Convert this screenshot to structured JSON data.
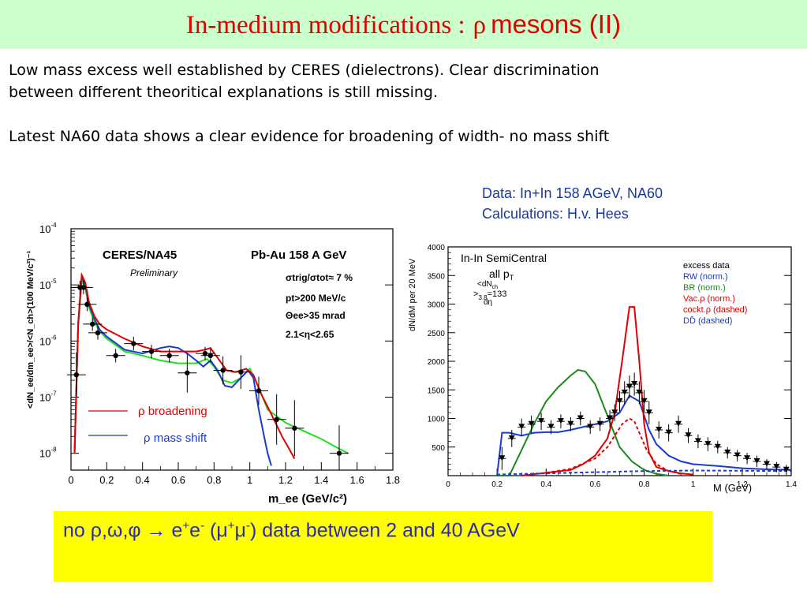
{
  "slide": {
    "title_prefix": "In-medium modifications :",
    "title_rho": "ρ",
    "title_suffix": "mesons (II)",
    "para1_line1": "Low mass excess well established by CERES (dielectrons). Clear discrimination",
    "para1_line2": "between different theoritical explanations is still missing.",
    "para2": "Latest NA60 data shows a clear evidence for broadening of width- no mass shift",
    "caption_line1": "Data:  In+In 158 AGeV, NA60",
    "caption_line2": "Calculations: H.v. Hees",
    "notice_main": "no ρ,ω,φ → e",
    "notice_sup1": "+",
    "notice_mid1": "e",
    "notice_sup2": "-",
    "notice_mid2": " (μ",
    "notice_sup3": "+",
    "notice_mid3": "μ",
    "notice_sup4": "-",
    "notice_end": ") data  between 2 and 40 AGeV"
  },
  "colors": {
    "title": "#e00000",
    "title_bg": "#ccffcc",
    "notice_bg": "#ffff00",
    "notice_text": "#2a2ab0",
    "caption_text": "#1a3a9a"
  },
  "chart_data": [
    {
      "type": "line",
      "title": "CERES/NA45",
      "subtitle": "Pb-Au 158 A GeV",
      "note": "Preliminary",
      "xlabel": "m_ee (GeV/c²)",
      "ylabel": "<dN_ee/dm_ee>/<N_ch>(100 MeV/c²)⁻¹",
      "xlim": [
        0,
        1.8
      ],
      "ylim_log10": [
        -8.3,
        -4
      ],
      "yscale": "log",
      "x_ticks": [
        "0",
        "0.2",
        "0.4",
        "0.6",
        "0.8",
        "1",
        "1.2",
        "1.4",
        "1.6",
        "1.8"
      ],
      "y_ticks": [
        {
          "exp": -8,
          "label": "10",
          "sup": "-8"
        },
        {
          "exp": -7,
          "label": "10",
          "sup": "-7"
        },
        {
          "exp": -6,
          "label": "10",
          "sup": "-6"
        },
        {
          "exp": -5,
          "label": "10",
          "sup": "-5"
        },
        {
          "exp": -4,
          "label": "10",
          "sup": "-4"
        }
      ],
      "annotations": [
        "σtrig/σtot≈ 7 %",
        "pt>200 MeV/c",
        "Θee>35 mrad",
        "2.1<η<2.65"
      ],
      "legend": [
        {
          "label": "ρ broadening",
          "color": "#e00000"
        },
        {
          "label": "ρ mass shift",
          "color": "#1a3ad0"
        }
      ],
      "points": [
        {
          "x": 0.03,
          "y": 2.5e-07,
          "err": 0.4
        },
        {
          "x": 0.05,
          "y": 9e-06,
          "err": 0.12
        },
        {
          "x": 0.07,
          "y": 9e-06,
          "err": 0.12
        },
        {
          "x": 0.09,
          "y": 4.5e-06,
          "err": 0.12
        },
        {
          "x": 0.12,
          "y": 2e-06,
          "err": 0.12
        },
        {
          "x": 0.15,
          "y": 1.4e-06,
          "err": 0.12
        },
        {
          "x": 0.25,
          "y": 5.5e-07,
          "err": 0.12
        },
        {
          "x": 0.35,
          "y": 9e-07,
          "err": 0.12
        },
        {
          "x": 0.45,
          "y": 6.5e-07,
          "err": 0.12
        },
        {
          "x": 0.55,
          "y": 5.5e-07,
          "err": 0.12
        },
        {
          "x": 0.65,
          "y": 2.7e-07,
          "err": 0.35
        },
        {
          "x": 0.75,
          "y": 6e-07,
          "err": 0.12
        },
        {
          "x": 0.78,
          "y": 5.5e-07,
          "err": 0.12
        },
        {
          "x": 0.85,
          "y": 3e-07,
          "err": 0.25
        },
        {
          "x": 0.95,
          "y": 2.8e-07,
          "err": 0.3
        },
        {
          "x": 1.05,
          "y": 1.3e-07,
          "err": 0.25
        },
        {
          "x": 1.15,
          "y": 4e-08,
          "err": 0.45
        },
        {
          "x": 1.25,
          "y": 2.8e-08,
          "err": 0.5
        },
        {
          "x": 1.5,
          "y": 1e-08,
          "err": 0.5
        }
      ],
      "series": [
        {
          "name": "ρ broadening",
          "color": "#e00000",
          "x": [
            0.02,
            0.04,
            0.06,
            0.08,
            0.1,
            0.13,
            0.16,
            0.2,
            0.3,
            0.4,
            0.5,
            0.6,
            0.7,
            0.75,
            0.78,
            0.82,
            0.87,
            0.92,
            0.98,
            1.02,
            1.06,
            1.12,
            1.18,
            1.22,
            1.25
          ],
          "y": [
            1e-08,
            2e-06,
            1.5e-05,
            1.1e-05,
            5e-06,
            2.8e-06,
            2e-06,
            1.6e-06,
            1.1e-06,
            8e-07,
            6.5e-07,
            6.5e-07,
            6.5e-07,
            7e-07,
            7.5e-07,
            5e-07,
            3e-07,
            2.8e-07,
            3.2e-07,
            2.5e-07,
            1.2e-07,
            5e-08,
            2e-08,
            1.2e-08,
            8e-09
          ]
        },
        {
          "name": "ρ mass shift",
          "color": "#1a3ad0",
          "x": [
            0.02,
            0.04,
            0.06,
            0.08,
            0.1,
            0.13,
            0.16,
            0.2,
            0.3,
            0.4,
            0.5,
            0.55,
            0.6,
            0.65,
            0.7,
            0.74,
            0.78,
            0.82,
            0.86,
            0.9,
            0.95,
            0.99,
            1.02,
            1.05,
            1.08,
            1.1,
            1.12
          ],
          "y": [
            1e-08,
            2e-06,
            1.4e-05,
            1e-05,
            4.5e-06,
            2.5e-06,
            1.6e-06,
            1.2e-06,
            7e-07,
            6e-07,
            7.5e-07,
            8e-07,
            7.5e-07,
            6e-07,
            4.5e-07,
            3.5e-07,
            4.5e-07,
            3e-07,
            1.6e-07,
            1.5e-07,
            2.2e-07,
            3e-07,
            2.2e-07,
            6e-08,
            2e-08,
            1e-08,
            6e-09
          ]
        },
        {
          "name": "",
          "color": "#20e020",
          "x": [
            0.02,
            0.04,
            0.06,
            0.08,
            0.1,
            0.13,
            0.16,
            0.2,
            0.3,
            0.4,
            0.5,
            0.6,
            0.7,
            0.76,
            0.8,
            0.85,
            0.9,
            0.95,
            1.0,
            1.05,
            1.1,
            1.2,
            1.3,
            1.4,
            1.5,
            1.55
          ],
          "y": [
            1e-08,
            1.8e-06,
            1.2e-05,
            9e-06,
            4e-06,
            2.2e-06,
            1.5e-06,
            1.1e-06,
            6.5e-07,
            5.5e-07,
            4.5e-07,
            4e-07,
            4e-07,
            4.8e-07,
            3.5e-07,
            2e-07,
            1.8e-07,
            2.2e-07,
            3.2e-07,
            1.5e-07,
            6e-08,
            3.5e-08,
            2.5e-08,
            1.8e-08,
            1.2e-08,
            1e-08
          ]
        }
      ]
    },
    {
      "type": "line",
      "title": "In-In SemiCentral",
      "subtitle": "all p",
      "subtitle_sub": "T",
      "dndeta_label": "<dN",
      "dndeta_sub": "ch",
      "dndeta_den": "dη",
      "dndeta_rest": ">",
      "dndeta_sub2": "3.8",
      "dndeta_val": "=133",
      "xlabel": "M (GeV)",
      "ylabel": "dN/dM per 20 MeV",
      "xlim": [
        0,
        1.4
      ],
      "ylim": [
        0,
        4000
      ],
      "x_ticks": [
        "0",
        "0.2",
        "0.4",
        "0.6",
        "0.8",
        "1",
        "1.2",
        "1.4"
      ],
      "y_ticks": [
        "500",
        "1000",
        "1500",
        "2000",
        "2500",
        "3000",
        "3500",
        "4000"
      ],
      "y_tick_values": [
        500,
        1000,
        1500,
        2000,
        2500,
        3000,
        3500,
        4000
      ],
      "legend": [
        {
          "label": "excess data",
          "color": "#000000"
        },
        {
          "label": "RW (norm.)",
          "color": "#1a3ad0"
        },
        {
          "label": "BR (norm.)",
          "color": "#1a8a1a"
        },
        {
          "label": "Vac.ρ (norm.)",
          "color": "#e00000"
        },
        {
          "label": "cockt.ρ (dashed)",
          "color": "#e00000"
        },
        {
          "label": "DD̄ (dashed)",
          "color": "#1a3ad0"
        }
      ],
      "points": {
        "x": [
          0.22,
          0.26,
          0.3,
          0.34,
          0.38,
          0.42,
          0.46,
          0.5,
          0.54,
          0.58,
          0.62,
          0.66,
          0.68,
          0.7,
          0.72,
          0.74,
          0.76,
          0.78,
          0.8,
          0.82,
          0.86,
          0.9,
          0.94,
          0.98,
          1.02,
          1.06,
          1.1,
          1.14,
          1.18,
          1.22,
          1.26,
          1.3,
          1.34,
          1.38
        ],
        "y": [
          300,
          650,
          850,
          900,
          950,
          850,
          950,
          900,
          1000,
          850,
          900,
          1000,
          1100,
          1300,
          1450,
          1550,
          1600,
          1450,
          1300,
          1100,
          800,
          750,
          900,
          700,
          600,
          550,
          500,
          400,
          350,
          300,
          250,
          200,
          150,
          100
        ],
        "err": [
          200,
          150,
          150,
          150,
          150,
          120,
          120,
          120,
          120,
          120,
          120,
          150,
          150,
          180,
          200,
          200,
          200,
          200,
          200,
          200,
          150,
          150,
          150,
          130,
          120,
          120,
          110,
          100,
          100,
          100,
          100,
          90,
          90,
          90
        ]
      },
      "series": [
        {
          "name": "RW (norm.)",
          "color": "#1a3ad0",
          "dashed": false,
          "x": [
            0.2,
            0.22,
            0.25,
            0.3,
            0.35,
            0.4,
            0.45,
            0.5,
            0.55,
            0.6,
            0.65,
            0.7,
            0.72,
            0.74,
            0.76,
            0.78,
            0.8,
            0.82,
            0.85,
            0.9,
            0.95,
            1.0,
            1.1,
            1.2,
            1.3,
            1.4
          ],
          "y": [
            0,
            750,
            750,
            700,
            750,
            760,
            760,
            800,
            850,
            900,
            950,
            1100,
            1250,
            1400,
            1350,
            1300,
            1050,
            800,
            550,
            350,
            250,
            200,
            170,
            130,
            110,
            100
          ]
        },
        {
          "name": "BR (norm.)",
          "color": "#1a8a1a",
          "dashed": false,
          "x": [
            0.2,
            0.25,
            0.3,
            0.35,
            0.4,
            0.45,
            0.5,
            0.53,
            0.56,
            0.6,
            0.65,
            0.7,
            0.75,
            0.8,
            0.85,
            0.9
          ],
          "y": [
            0,
            0,
            450,
            900,
            1300,
            1550,
            1750,
            1850,
            1820,
            1600,
            1050,
            500,
            250,
            100,
            30,
            0
          ]
        },
        {
          "name": "Vac.ρ (norm.)",
          "color": "#e00000",
          "dashed": false,
          "x": [
            0.3,
            0.4,
            0.5,
            0.55,
            0.6,
            0.65,
            0.68,
            0.71,
            0.74,
            0.76,
            0.78,
            0.8,
            0.82,
            0.85,
            0.9,
            0.95,
            1.0
          ],
          "y": [
            0,
            50,
            100,
            200,
            350,
            650,
            1100,
            2000,
            2950,
            2950,
            2000,
            900,
            400,
            150,
            80,
            40,
            20
          ]
        },
        {
          "name": "cockt.ρ (dashed)",
          "color": "#e00000",
          "dashed": true,
          "x": [
            0.4,
            0.5,
            0.6,
            0.65,
            0.68,
            0.71,
            0.74,
            0.76,
            0.78,
            0.81,
            0.85,
            0.9,
            0.95
          ],
          "y": [
            50,
            120,
            300,
            500,
            700,
            900,
            1000,
            950,
            750,
            450,
            200,
            80,
            30
          ]
        },
        {
          "name": "DD̄ (dashed)",
          "color": "#1a3ad0",
          "dashed": true,
          "x": [
            0.2,
            0.4,
            0.6,
            0.8,
            1.0,
            1.2,
            1.4
          ],
          "y": [
            20,
            40,
            60,
            80,
            90,
            85,
            80
          ]
        }
      ]
    }
  ]
}
